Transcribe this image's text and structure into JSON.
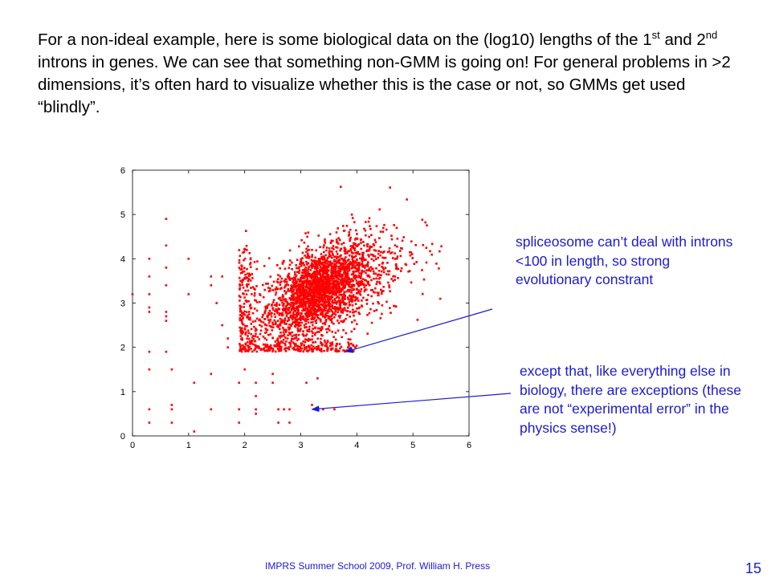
{
  "slide": {
    "intro": {
      "part1": "For a non-ideal example, here is some biological data on the (log10) lengths of the 1",
      "sup1": "st",
      "part2": " and 2",
      "sup2": "nd",
      "part3": " introns in genes.  We can see that something non-GMM is going on!  For general problems in >2 dimensions, it’s often hard to visualize whether this is the case or not, so GMMs get used “blindly”."
    },
    "annotation1": "spliceosome can’t deal with introns <100 in length, so strong evolutionary constrant",
    "annotation2": "except that, like everything else in biology, there are exceptions  (these are not “experimental error” in the physics sense!)",
    "footer": "IMPRS Summer School 2009, Prof. William H. Press",
    "page_number": "15"
  },
  "colors": {
    "points": "#ff0000",
    "annotation_text": "#1a1ad6",
    "arrow": "#1a1ad6",
    "axes": "#000000"
  },
  "chart_data": {
    "type": "scatter",
    "title": "",
    "xlabel": "",
    "ylabel": "",
    "xlim": [
      0,
      6
    ],
    "ylim": [
      0,
      6
    ],
    "x_ticks": [
      "0",
      "1",
      "2",
      "3",
      "4",
      "5",
      "6"
    ],
    "y_ticks": [
      "0",
      "1",
      "2",
      "3",
      "4",
      "5",
      "6"
    ],
    "grid": false,
    "marker": "red dots",
    "cluster": {
      "description": "dense main cluster (about 2500 points) of log10 intron lengths",
      "x_center": 3.3,
      "y_center": 3.3,
      "x_min": 1.9,
      "y_min": 1.9,
      "x_max": 5.8,
      "y_max": 5.7
    },
    "outliers": [
      [
        0.3,
        4.0
      ],
      [
        0.3,
        3.6
      ],
      [
        0.3,
        3.2
      ],
      [
        0.3,
        2.9
      ],
      [
        0.3,
        2.8
      ],
      [
        0.3,
        1.9
      ],
      [
        0.3,
        1.5
      ],
      [
        0.3,
        0.6
      ],
      [
        0.3,
        0.3
      ],
      [
        0.6,
        4.9
      ],
      [
        0.6,
        4.3
      ],
      [
        0.6,
        3.8
      ],
      [
        0.6,
        3.4
      ],
      [
        0.6,
        2.8
      ],
      [
        0.6,
        2.7
      ],
      [
        0.6,
        2.6
      ],
      [
        0.6,
        1.9
      ],
      [
        0.7,
        1.5
      ],
      [
        0.7,
        0.7
      ],
      [
        0.7,
        0.6
      ],
      [
        0.7,
        0.3
      ],
      [
        0.0,
        3.2
      ],
      [
        1.0,
        4.0
      ],
      [
        1.0,
        3.2
      ],
      [
        1.1,
        1.2
      ],
      [
        1.1,
        0.1
      ],
      [
        1.4,
        3.6
      ],
      [
        1.4,
        3.4
      ],
      [
        1.4,
        1.4
      ],
      [
        1.4,
        0.6
      ],
      [
        1.5,
        3.0
      ],
      [
        1.6,
        3.6
      ],
      [
        1.6,
        2.5
      ],
      [
        1.7,
        2.0
      ],
      [
        1.7,
        2.2
      ],
      [
        1.9,
        1.2
      ],
      [
        1.9,
        0.6
      ],
      [
        1.9,
        0.3
      ],
      [
        2.0,
        1.5
      ],
      [
        2.2,
        1.2
      ],
      [
        2.2,
        0.9
      ],
      [
        2.2,
        0.6
      ],
      [
        2.2,
        0.5
      ],
      [
        2.5,
        1.4
      ],
      [
        2.5,
        1.2
      ],
      [
        2.6,
        0.3
      ],
      [
        2.6,
        0.6
      ],
      [
        2.7,
        0.6
      ],
      [
        2.8,
        0.6
      ],
      [
        2.8,
        0.3
      ],
      [
        3.2,
        0.7
      ],
      [
        3.3,
        0.6
      ],
      [
        3.4,
        0.6
      ],
      [
        3.6,
        0.6
      ],
      [
        3.1,
        1.2
      ],
      [
        3.3,
        1.3
      ]
    ]
  },
  "arrows": [
    {
      "label": "arrow-to-cluster-floor",
      "to_data": [
        3.8,
        1.9
      ]
    },
    {
      "label": "arrow-to-outliers",
      "to_data": [
        3.2,
        0.6
      ]
    }
  ]
}
